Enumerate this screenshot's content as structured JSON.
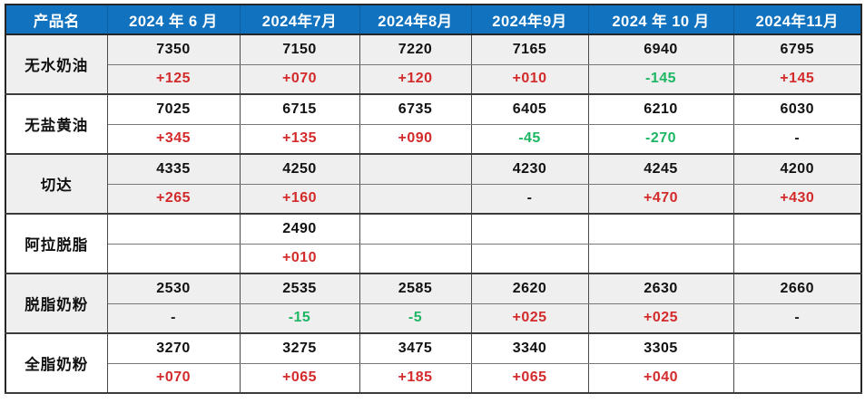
{
  "colors": {
    "header_bg": "#1173bf",
    "header_text": "#ffffff",
    "red": "#d32b2b",
    "green": "#1db763",
    "grid": "#4a4a4a",
    "row_gray": "#efefef"
  },
  "table": {
    "columns": [
      "产品名",
      "2024 年 6 月",
      "2024年7月",
      "2024年8月",
      "2024年9月",
      "2024 年 10 月",
      "2024年11月"
    ],
    "products": [
      {
        "name": "无水奶油",
        "prices": [
          "7350",
          "7150",
          "7220",
          "7165",
          "6940",
          "6795"
        ],
        "changes": [
          "+125",
          "+070",
          "+120",
          "+010",
          "-145",
          "+145"
        ]
      },
      {
        "name": "无盐黄油",
        "prices": [
          "7025",
          "6715",
          "6735",
          "6405",
          "6210",
          "6030"
        ],
        "changes": [
          "+345",
          "+135",
          "+090",
          "-45",
          "-270",
          "-"
        ]
      },
      {
        "name": "切达",
        "prices": [
          "4335",
          "4250",
          "",
          "4230",
          "4245",
          "4200"
        ],
        "changes": [
          "+265",
          "+160",
          "",
          "-",
          "+470",
          "+430"
        ]
      },
      {
        "name": "阿拉脱脂",
        "prices": [
          "",
          "2490",
          "",
          "",
          "",
          ""
        ],
        "changes": [
          "",
          "+010",
          "",
          "",
          "",
          ""
        ]
      },
      {
        "name": "脱脂奶粉",
        "prices": [
          "2530",
          "2535",
          "2585",
          "2620",
          "2630",
          "2660"
        ],
        "changes": [
          "-",
          "-15",
          "-5",
          "+025",
          "+025",
          "-"
        ]
      },
      {
        "name": "全脂奶粉",
        "prices": [
          "3270",
          "3275",
          "3475",
          "3340",
          "3305",
          ""
        ],
        "changes": [
          "+070",
          "+065",
          "+185",
          "+065",
          "+040",
          ""
        ]
      }
    ]
  }
}
